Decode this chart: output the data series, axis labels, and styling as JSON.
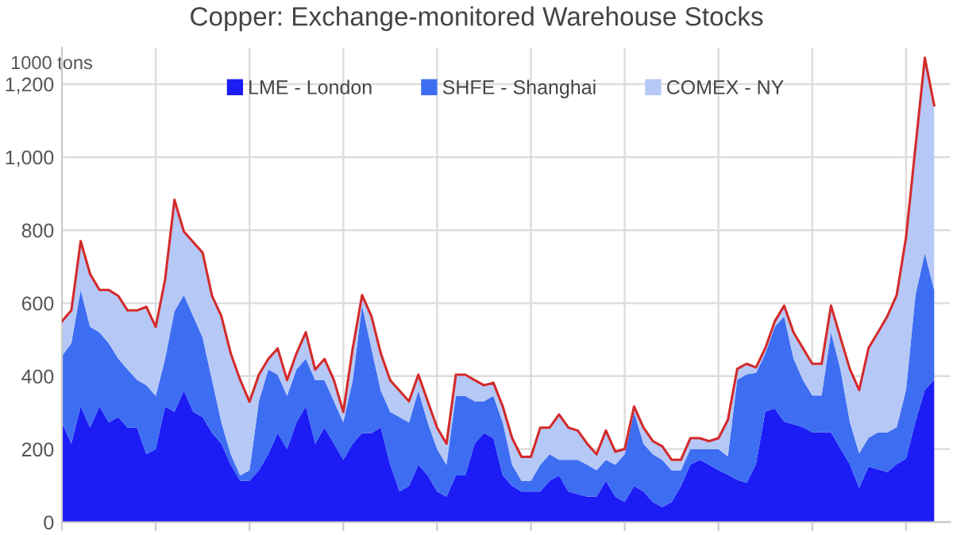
{
  "chart_data": {
    "type": "area",
    "title": "Copper: Exchange-monitored Warehouse Stocks",
    "ylabel": "1000 tons",
    "stacked": true,
    "grid": true,
    "legend": "top",
    "categories": [
      null,
      null,
      null,
      null,
      null,
      null,
      null,
      null,
      null,
      null,
      null,
      null,
      null,
      null,
      null,
      null,
      null,
      null,
      null,
      null,
      null,
      null,
      null,
      null,
      null,
      null,
      null,
      null,
      null,
      null,
      null,
      null,
      null,
      null,
      null,
      null,
      null,
      null,
      null,
      null,
      null,
      null,
      null,
      null,
      null,
      null,
      null,
      null,
      null,
      null,
      null,
      null,
      null,
      null,
      null,
      null,
      null,
      null,
      null,
      null,
      null,
      null,
      null,
      null,
      null,
      null,
      null,
      null,
      null,
      null,
      null,
      null,
      null,
      null,
      null,
      null,
      null,
      null,
      null,
      null,
      null,
      null,
      null,
      null,
      null,
      null,
      null,
      null,
      null,
      null,
      null,
      null,
      null,
      null
    ],
    "ylim": [
      0,
      1300
    ],
    "yticks": [
      0,
      200,
      400,
      600,
      800,
      {
        "value": 1000,
        "label": "1,000"
      },
      {
        "value": 1200,
        "label": "1,200"
      }
    ],
    "series": [
      {
        "name": "LME - London",
        "color": "#1c1cf5",
        "values": [
          273,
          215,
          317,
          259,
          317,
          273,
          288,
          259,
          259,
          186,
          200,
          317,
          302,
          360,
          302,
          288,
          244,
          215,
          157,
          113,
          113,
          142,
          186,
          244,
          200,
          273,
          317,
          215,
          259,
          215,
          171,
          215,
          244,
          244,
          259,
          157,
          84,
          99,
          157,
          128,
          84,
          70,
          128,
          128,
          215,
          244,
          230,
          128,
          99,
          84,
          84,
          84,
          113,
          128,
          84,
          77,
          70,
          70,
          113,
          70,
          55,
          99,
          84,
          55,
          41,
          55,
          99,
          157,
          171,
          157,
          142,
          130,
          116,
          108,
          159,
          304,
          311,
          275,
          268,
          260,
          246,
          246,
          246,
          202,
          159,
          94,
          152,
          145,
          137,
          159,
          174,
          275,
          362,
          390
        ]
      },
      {
        "name": "SHFE - Shanghai",
        "color": "#3d6ef2",
        "values": [
          182,
          275,
          319,
          276,
          203,
          217,
          160,
          159,
          131,
          189,
          146,
          131,
          276,
          262,
          262,
          218,
          146,
          58,
          29,
          15,
          29,
          189,
          232,
          160,
          146,
          145,
          131,
          174,
          130,
          116,
          102,
          174,
          349,
          232,
          101,
          145,
          204,
          174,
          203,
          145,
          116,
          87,
          218,
          218,
          116,
          87,
          116,
          145,
          58,
          29,
          29,
          73,
          73,
          43,
          87,
          94,
          87,
          72,
          58,
          87,
          131,
          203,
          131,
          131,
          130,
          87,
          43,
          43,
          29,
          43,
          58,
          50,
          274,
          297,
          250,
          158,
          224,
          289,
          180,
          130,
          101,
          101,
          274,
          218,
          116,
          94,
          79,
          101,
          109,
          101,
          188,
          347,
          375,
          246
        ]
      },
      {
        "name": "COMEX - NY",
        "color": "#b6c8f6",
        "values": [
          95,
          90,
          134,
          145,
          116,
          146,
          172,
          162,
          190,
          215,
          189,
          217,
          305,
          174,
          203,
          232,
          230,
          291,
          276,
          262,
          188,
          73,
          29,
          72,
          43,
          44,
          72,
          29,
          58,
          58,
          29,
          87,
          29,
          88,
          102,
          87,
          72,
          58,
          44,
          58,
          59,
          58,
          58,
          58,
          58,
          44,
          36,
          44,
          73,
          66,
          66,
          102,
          73,
          124,
          88,
          80,
          58,
          44,
          80,
          36,
          14,
          15,
          44,
          36,
          37,
          29,
          29,
          30,
          30,
          22,
          30,
          100,
          30,
          29,
          15,
          15,
          15,
          29,
          72,
          87,
          87,
          87,
          73,
          86,
          145,
          174,
          246,
          274,
          318,
          362,
          419,
          405,
          535,
          506
        ]
      },
      {
        "type": "line",
        "color": "#d42a2a",
        "values": [
          550,
          580,
          770,
          680,
          636,
          636,
          620,
          580,
          580,
          590,
          535,
          665,
          883,
          796,
          767,
          738,
          620,
          564,
          462,
          390,
          330,
          404,
          447,
          476,
          389,
          462,
          520,
          418,
          447,
          389,
          302,
          476,
          622,
          564,
          462,
          389,
          360,
          331,
          404,
          331,
          259,
          215,
          404,
          404,
          389,
          375,
          382,
          317,
          230,
          179,
          179,
          259,
          259,
          295,
          259,
          251,
          215,
          186,
          251,
          193,
          200,
          317,
          259,
          222,
          208,
          171,
          171,
          230,
          230,
          222,
          230,
          280,
          420,
          434,
          424,
          477,
          550,
          593,
          520,
          477,
          434,
          434,
          593,
          506,
          420,
          362,
          477,
          520,
          564,
          622,
          781,
          1027,
          1272,
          1142
        ]
      }
    ]
  }
}
